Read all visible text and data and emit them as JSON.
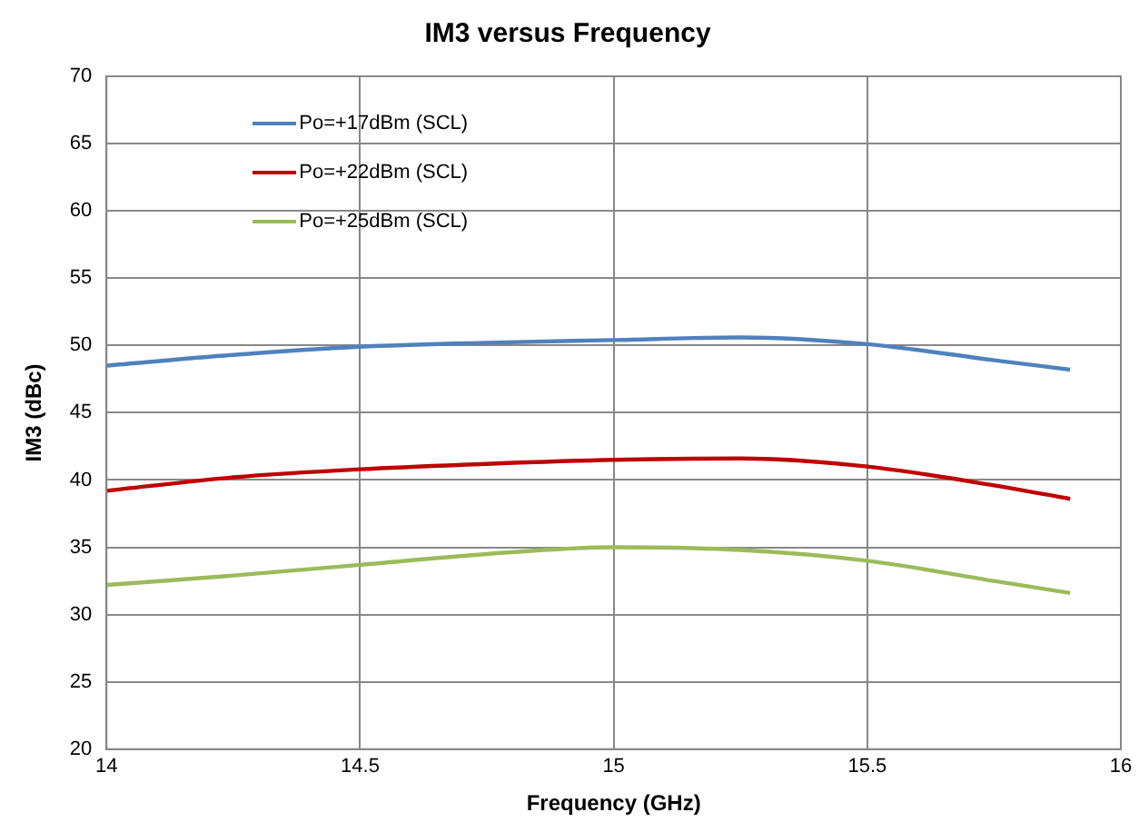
{
  "chart_data": {
    "type": "line",
    "title": "IM3 versus Frequency",
    "xlabel": "Frequency (GHz)",
    "ylabel": "IM3 (dBc)",
    "x": [
      14,
      14.25,
      14.5,
      14.75,
      15,
      15.25,
      15.5,
      15.75,
      15.9
    ],
    "series": [
      {
        "name": "Po=+17dBm (SCL)",
        "color": "#4f81bd",
        "values": [
          48.5,
          49.3,
          49.9,
          50.2,
          50.4,
          50.6,
          50.1,
          48.9,
          48.2
        ]
      },
      {
        "name": "Po=+22dBm (SCL)",
        "color": "#c00000",
        "values": [
          39.2,
          40.2,
          40.8,
          41.2,
          41.5,
          41.6,
          41.0,
          39.6,
          38.6
        ]
      },
      {
        "name": "Po=+25dBm (SCL)",
        "color": "#9bbb59",
        "values": [
          32.2,
          32.9,
          33.7,
          34.5,
          35.0,
          34.8,
          34.0,
          32.5,
          31.6
        ]
      }
    ],
    "xlim": [
      14,
      16
    ],
    "xticks": [
      14,
      14.5,
      15,
      15.5,
      16
    ],
    "ylim": [
      20,
      70
    ],
    "yticks": [
      20,
      25,
      30,
      35,
      40,
      45,
      50,
      55,
      60,
      65,
      70
    ],
    "grid": true,
    "legend": "top left",
    "marker": "none",
    "line_style": "solid"
  }
}
